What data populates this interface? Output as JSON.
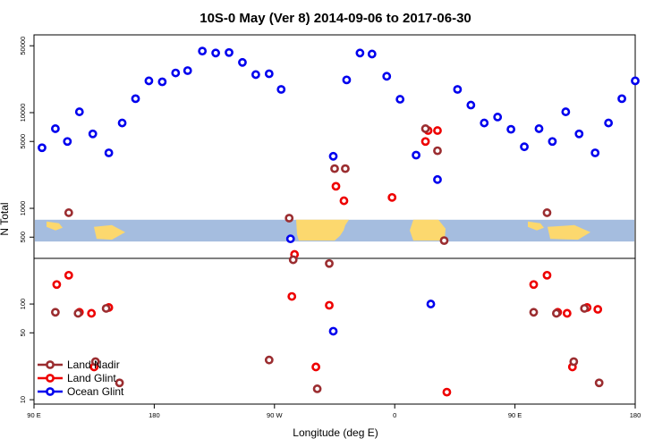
{
  "chart_data": {
    "type": "scatter",
    "title": "10S-0 May (Ver 8)   2014-09-06 to 2017-06-30",
    "xlabel": "Longitude (deg E)",
    "ylabel": "N Total",
    "x_tick_labels": [
      "90 E",
      "180",
      "90 W",
      "0",
      "90 E",
      "180"
    ],
    "x_ticks_deg": [
      90,
      180,
      270,
      360,
      450,
      540
    ],
    "xlim": [
      90,
      540
    ],
    "y_scale": "log",
    "ylim": [
      9,
      65000
    ],
    "y_ticks": [
      10,
      50,
      100,
      500,
      1000,
      5000,
      10000,
      50000
    ],
    "y_tick_labels": [
      "10",
      "50",
      "100",
      "500",
      "1000",
      "5000",
      "10000",
      "50000"
    ],
    "reference_line_y": 300,
    "map_band_y": [
      450,
      760
    ],
    "legend": {
      "position": "bottom-left",
      "entries": [
        "Land Nadir",
        "Land Glint",
        "Ocean Glint"
      ]
    },
    "series": [
      {
        "name": "Ocean Glint",
        "color": "#0000ee",
        "points": [
          [
            96,
            4300
          ],
          [
            106,
            6800
          ],
          [
            115,
            5000
          ],
          [
            124,
            10200
          ],
          [
            134,
            6000
          ],
          [
            146,
            3800
          ],
          [
            156,
            7800
          ],
          [
            166,
            14000
          ],
          [
            176,
            21500
          ],
          [
            186,
            21000
          ],
          [
            196,
            26000
          ],
          [
            205,
            27500
          ],
          [
            216,
            44000
          ],
          [
            226,
            42000
          ],
          [
            236,
            42500
          ],
          [
            246,
            33500
          ],
          [
            256,
            25000
          ],
          [
            266,
            25500
          ],
          [
            275,
            17500
          ],
          [
            282,
            480
          ],
          [
            314,
            3500
          ],
          [
            314,
            52
          ],
          [
            324,
            22000
          ],
          [
            334,
            42000
          ],
          [
            343,
            41000
          ],
          [
            354,
            24000
          ],
          [
            364,
            13800
          ],
          [
            376,
            3600
          ],
          [
            387,
            100
          ],
          [
            392,
            2000
          ],
          [
            407,
            17500
          ],
          [
            417,
            12000
          ],
          [
            427,
            7800
          ],
          [
            437,
            9000
          ],
          [
            447,
            6700
          ],
          [
            457,
            4400
          ],
          [
            468,
            6800
          ],
          [
            478,
            5000
          ],
          [
            488,
            10200
          ],
          [
            498,
            6000
          ],
          [
            510,
            3800
          ],
          [
            520,
            7800
          ],
          [
            530,
            14000
          ],
          [
            540,
            21500
          ]
        ]
      },
      {
        "name": "Land Glint",
        "color": "#ee0000",
        "points": [
          [
            107,
            160
          ],
          [
            116,
            200
          ],
          [
            124,
            82
          ],
          [
            133,
            80
          ],
          [
            135,
            22
          ],
          [
            146,
            92
          ],
          [
            283,
            120
          ],
          [
            285,
            330
          ],
          [
            301,
            22
          ],
          [
            311,
            97
          ],
          [
            316,
            1700
          ],
          [
            322,
            1200
          ],
          [
            358,
            1300
          ],
          [
            383,
            5000
          ],
          [
            385,
            6500
          ],
          [
            392,
            6500
          ],
          [
            399,
            12
          ],
          [
            464,
            160
          ],
          [
            474,
            200
          ],
          [
            482,
            82
          ],
          [
            489,
            80
          ],
          [
            493,
            22
          ],
          [
            504,
            92
          ],
          [
            512,
            88
          ]
        ]
      },
      {
        "name": "Land Nadir",
        "color": "#9b2d30",
        "points": [
          [
            106,
            82
          ],
          [
            116,
            900
          ],
          [
            123,
            80
          ],
          [
            136,
            25
          ],
          [
            144,
            90
          ],
          [
            154,
            15
          ],
          [
            266,
            26
          ],
          [
            281,
            790
          ],
          [
            284,
            290
          ],
          [
            302,
            13
          ],
          [
            311,
            265
          ],
          [
            315,
            2600
          ],
          [
            323,
            2600
          ],
          [
            383,
            6800
          ],
          [
            392,
            4000
          ],
          [
            397,
            460
          ],
          [
            464,
            82
          ],
          [
            474,
            900
          ],
          [
            481,
            80
          ],
          [
            494,
            25
          ],
          [
            502,
            90
          ],
          [
            513,
            15
          ]
        ]
      }
    ]
  }
}
